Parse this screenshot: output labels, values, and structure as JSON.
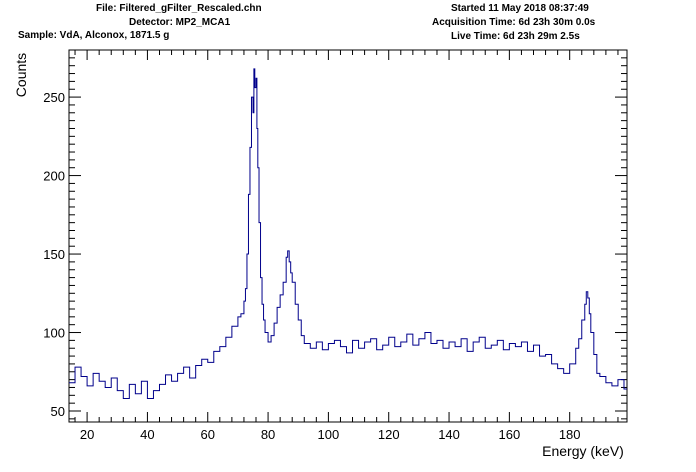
{
  "header": {
    "file": "File: Filtered_gFilter_Rescaled.chn",
    "detector": "Detector: MP2_MCA1",
    "sample": "Sample: VdA, Alconox, 1871.5 g",
    "started": "Started 11 May 2018 08:37:49",
    "acquisition": "Acquisition Time: 6d 23h 30m 0.0s",
    "live": "Live Time: 6d 23h 29m 2.5s"
  },
  "chart_data": {
    "type": "line",
    "title": "",
    "xlabel": "Energy (keV)",
    "ylabel": "Counts",
    "xlim": [
      14,
      199
    ],
    "ylim": [
      43,
      280
    ],
    "xticks": [
      20,
      40,
      60,
      80,
      100,
      120,
      140,
      160,
      180
    ],
    "yticks": [
      50,
      100,
      150,
      200,
      250
    ],
    "xtick_labels": [
      "20",
      "40",
      "60",
      "80",
      "100",
      "120",
      "140",
      "160",
      "180"
    ],
    "ytick_labels": [
      "50",
      "100",
      "150",
      "200",
      "250"
    ],
    "grid": false,
    "series": [
      {
        "color": "#00008b",
        "x": [
          14,
          16,
          18,
          20,
          22,
          24,
          26,
          28,
          30,
          32,
          34,
          36,
          38,
          40,
          42,
          44,
          46,
          48,
          50,
          52,
          54,
          56,
          58,
          60,
          62,
          64,
          66,
          68,
          70,
          71,
          72,
          72.5,
          73,
          73.5,
          74,
          74.5,
          75,
          75.3,
          75.6,
          76,
          76.3,
          76.6,
          77,
          77.5,
          78,
          78.5,
          79,
          80,
          81,
          82,
          83,
          84,
          85,
          86,
          86.5,
          87,
          87.5,
          88,
          89,
          90,
          91,
          92,
          94,
          96,
          98,
          100,
          102,
          104,
          106,
          108,
          110,
          112,
          114,
          116,
          118,
          120,
          122,
          124,
          126,
          128,
          130,
          132,
          134,
          136,
          138,
          140,
          142,
          144,
          146,
          148,
          150,
          152,
          154,
          156,
          158,
          160,
          162,
          164,
          166,
          168,
          170,
          172,
          174,
          176,
          178,
          180,
          182,
          183,
          184,
          185,
          185.5,
          186,
          186.5,
          187,
          188,
          189,
          190,
          192,
          194,
          196,
          198
        ],
        "y": [
          68,
          78,
          72,
          66,
          74,
          69,
          65,
          71,
          63,
          58,
          67,
          61,
          69,
          58,
          63,
          67,
          73,
          69,
          74,
          78,
          71,
          79,
          83,
          81,
          88,
          91,
          97,
          104,
          110,
          112,
          120,
          128,
          150,
          188,
          218,
          250,
          240,
          268,
          256,
          262,
          230,
          205,
          170,
          135,
          118,
          108,
          100,
          94,
          98,
          106,
          116,
          124,
          132,
          148,
          152,
          145,
          138,
          132,
          118,
          108,
          98,
          93,
          90,
          94,
          89,
          93,
          95,
          91,
          87,
          95,
          90,
          94,
          96,
          89,
          92,
          97,
          91,
          94,
          99,
          92,
          96,
          100,
          93,
          95,
          90,
          94,
          91,
          96,
          88,
          94,
          97,
          90,
          92,
          95,
          89,
          93,
          91,
          94,
          88,
          92,
          85,
          86,
          80,
          77,
          74,
          80,
          90,
          96,
          108,
          118,
          126,
          122,
          112,
          100,
          86,
          74,
          72,
          68,
          66,
          70,
          64
        ]
      }
    ]
  }
}
